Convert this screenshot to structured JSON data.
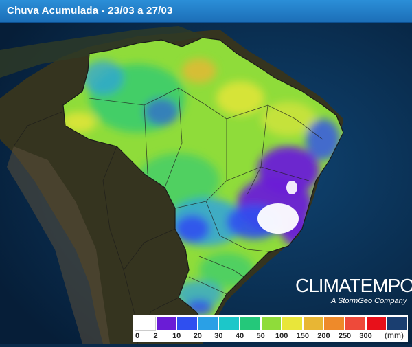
{
  "header": {
    "title": "Chuva Acumulada - 23/03 a 27/03"
  },
  "brand": {
    "name": "CLIMATEMPO",
    "subtitle": "A StormGeo Company"
  },
  "legend": {
    "unit": "(mm)",
    "ticks": [
      "0",
      "2",
      "10",
      "20",
      "30",
      "40",
      "50",
      "100",
      "150",
      "200",
      "250",
      "300"
    ],
    "colors": [
      "#ffffff",
      "#6a1cd6",
      "#2f4ff0",
      "#2aa0e6",
      "#1cc7c9",
      "#24c87a",
      "#8fdc3a",
      "#e9e63a",
      "#e8b634",
      "#ee8a2a",
      "#ee4a3a",
      "#e8101a",
      "#1a3e70"
    ]
  },
  "map": {
    "ocean": "#0c3456",
    "land": "#3b3a2c",
    "region": "Brasil"
  }
}
